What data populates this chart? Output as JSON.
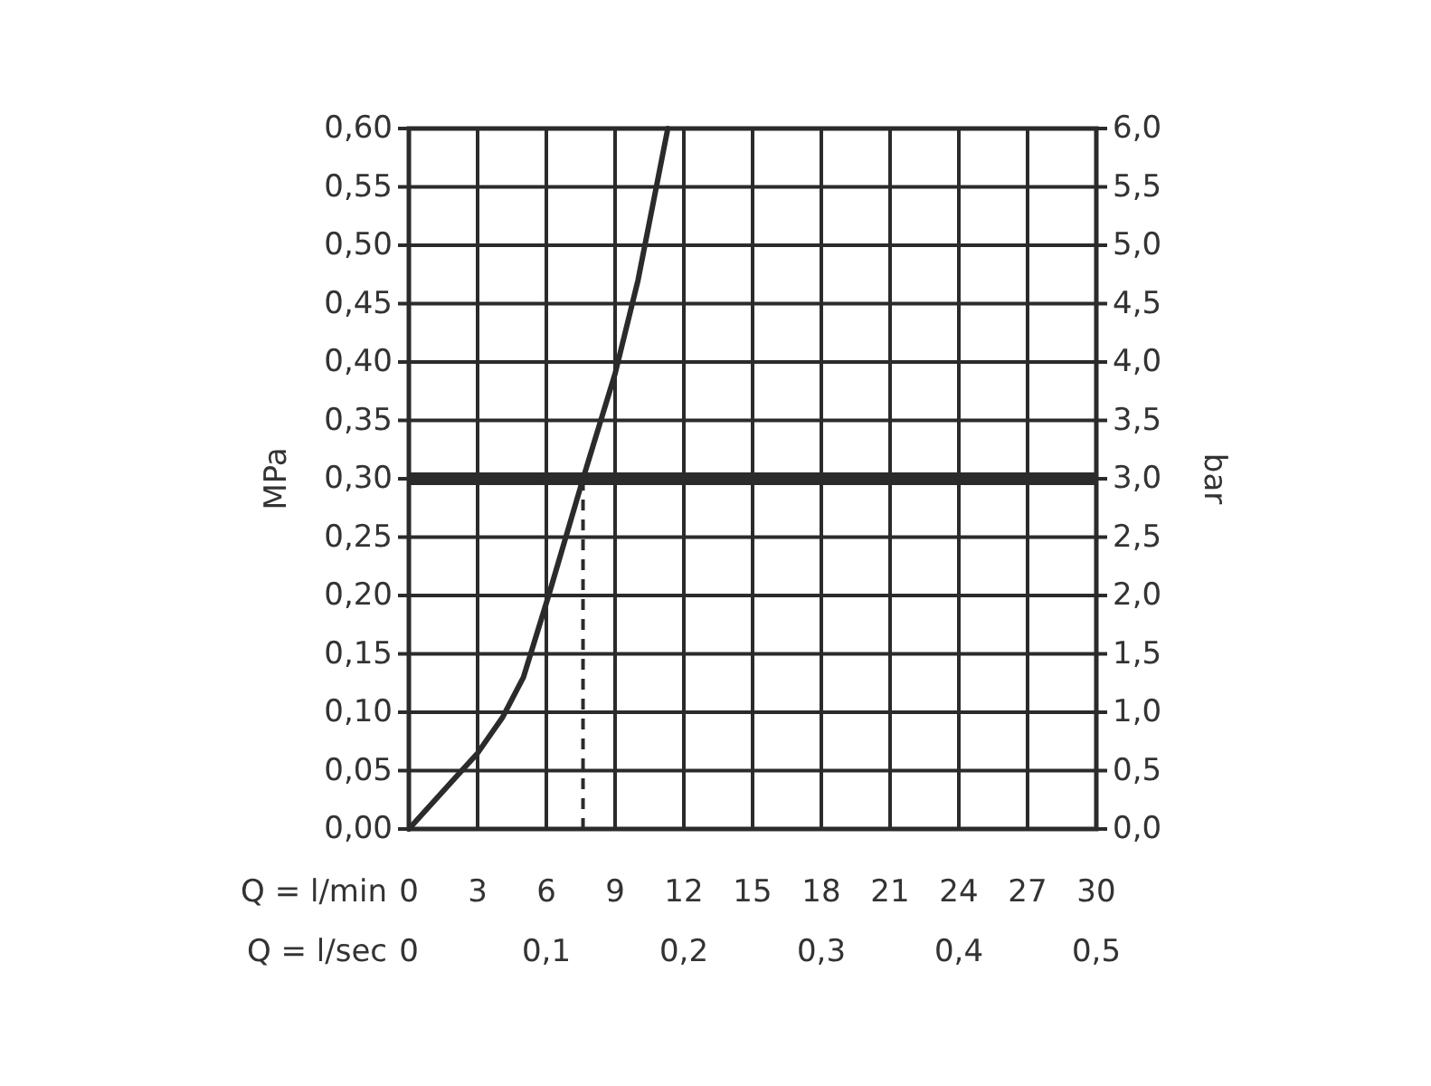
{
  "chart_data": {
    "type": "line",
    "xlabel": "Q = l/min",
    "x2label": "Q = l/sec",
    "ylabel": "MPa",
    "y2label": "bar",
    "xlim": [
      0,
      30
    ],
    "xticks": [
      0,
      3,
      6,
      9,
      12,
      15,
      18,
      21,
      24,
      27,
      30
    ],
    "x2lim": [
      0,
      0.5
    ],
    "x2ticks": [
      {
        "value": 0,
        "label": "0"
      },
      {
        "value": 0.1,
        "label": "0,1"
      },
      {
        "value": 0.2,
        "label": "0,2"
      },
      {
        "value": 0.3,
        "label": "0,3"
      },
      {
        "value": 0.4,
        "label": "0,4"
      },
      {
        "value": 0.5,
        "label": "0,5"
      }
    ],
    "ylim": [
      0,
      0.6
    ],
    "yticks": [
      {
        "value": 0,
        "label": "0,00"
      },
      {
        "value": 0.05,
        "label": "0,05"
      },
      {
        "value": 0.1,
        "label": "0,10"
      },
      {
        "value": 0.15,
        "label": "0,15"
      },
      {
        "value": 0.2,
        "label": "0,20"
      },
      {
        "value": 0.25,
        "label": "0,25"
      },
      {
        "value": 0.3,
        "label": "0,30"
      },
      {
        "value": 0.35,
        "label": "0,35"
      },
      {
        "value": 0.4,
        "label": "0,40"
      },
      {
        "value": 0.45,
        "label": "0,45"
      },
      {
        "value": 0.5,
        "label": "0,50"
      },
      {
        "value": 0.55,
        "label": "0,55"
      },
      {
        "value": 0.6,
        "label": "0,60"
      }
    ],
    "y2lim": [
      0,
      6
    ],
    "y2ticks": [
      {
        "value": 0,
        "label": "0,0"
      },
      {
        "value": 0.5,
        "label": "0,5"
      },
      {
        "value": 1,
        "label": "1,0"
      },
      {
        "value": 1.5,
        "label": "1,5"
      },
      {
        "value": 2,
        "label": "2,0"
      },
      {
        "value": 2.5,
        "label": "2,5"
      },
      {
        "value": 3,
        "label": "3,0"
      },
      {
        "value": 3.5,
        "label": "3,5"
      },
      {
        "value": 4,
        "label": "4,0"
      },
      {
        "value": 4.5,
        "label": "4,5"
      },
      {
        "value": 5,
        "label": "5,0"
      },
      {
        "value": 5.5,
        "label": "5,5"
      },
      {
        "value": 6,
        "label": "6,0"
      }
    ],
    "grid": true,
    "line_style": "solid",
    "series": [
      {
        "color": "#2b2b2b",
        "x": [
          0,
          3,
          4.1,
          5,
          6.1,
          7.6,
          9,
          10,
          11.3
        ],
        "values": [
          0,
          0.065,
          0.096,
          0.13,
          0.2,
          0.3,
          0.39,
          0.47,
          0.6
        ]
      }
    ],
    "ref_lines": [
      {
        "axis": "y",
        "value": 0.3,
        "color": "#2b2b2b",
        "line_style": "solid"
      },
      {
        "axis": "x",
        "value": 7.6,
        "color": "#2b2b2b",
        "line_style": "dashed"
      }
    ]
  }
}
